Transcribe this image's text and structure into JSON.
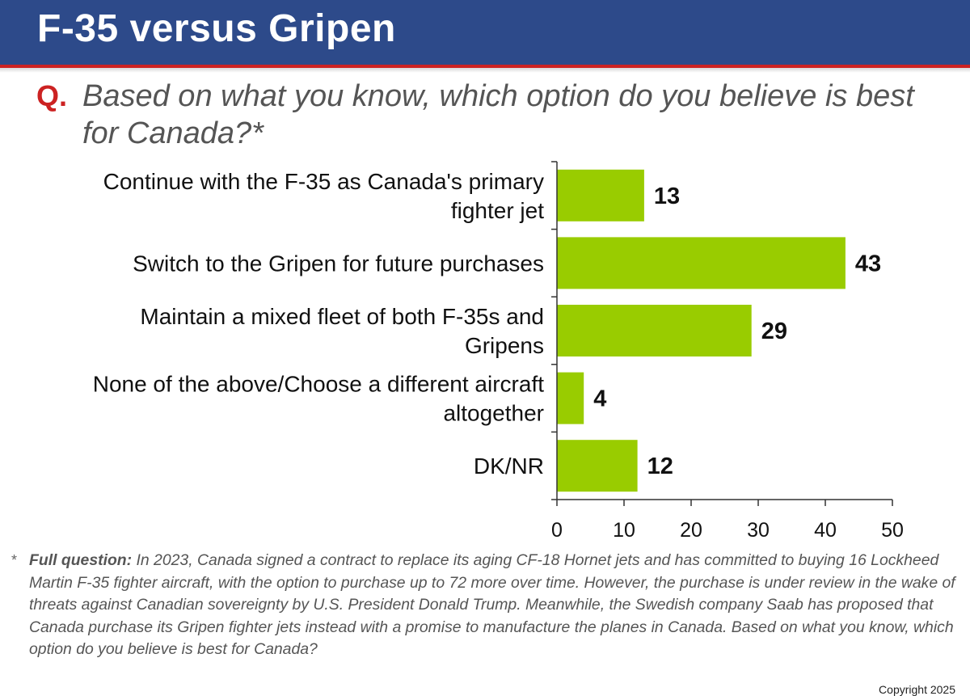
{
  "header": {
    "title": "F-35 versus Gripen"
  },
  "question": {
    "marker": "Q.",
    "text": "Based on what you know, which option do you believe is best for Canada?*"
  },
  "chart_data": {
    "type": "bar",
    "orientation": "horizontal",
    "categories": [
      [
        "Continue with the F-35 as Canada's primary",
        "fighter jet"
      ],
      [
        "Switch to the Gripen for future purchases"
      ],
      [
        "Maintain a mixed fleet of both F-35s and",
        "Gripens"
      ],
      [
        "None of the above/Choose a different aircraft",
        "altogether"
      ],
      [
        "DK/NR"
      ]
    ],
    "values": [
      13,
      43,
      29,
      4,
      12
    ],
    "xlim": [
      0,
      50
    ],
    "xticks": [
      0,
      10,
      20,
      30,
      40,
      50
    ],
    "bar_color": "#99cc00",
    "title": "",
    "xlabel": "",
    "ylabel": ""
  },
  "footnote": {
    "marker": "*",
    "label": "Full question:",
    "text": "In 2023, Canada signed a contract to replace its aging CF-18 Hornet jets and has committed to buying 16 Lockheed Martin F-35 fighter aircraft, with the option to purchase up to 72 more over time. However, the purchase is under review in the wake of threats against Canadian sovereignty by U.S. President Donald Trump. Meanwhile, the Swedish company Saab has proposed that Canada purchase its Gripen fighter jets instead with a promise to manufacture the planes in Canada. Based on what you know, which option do you believe is best for Canada?"
  },
  "copyright": "Copyright 2025"
}
